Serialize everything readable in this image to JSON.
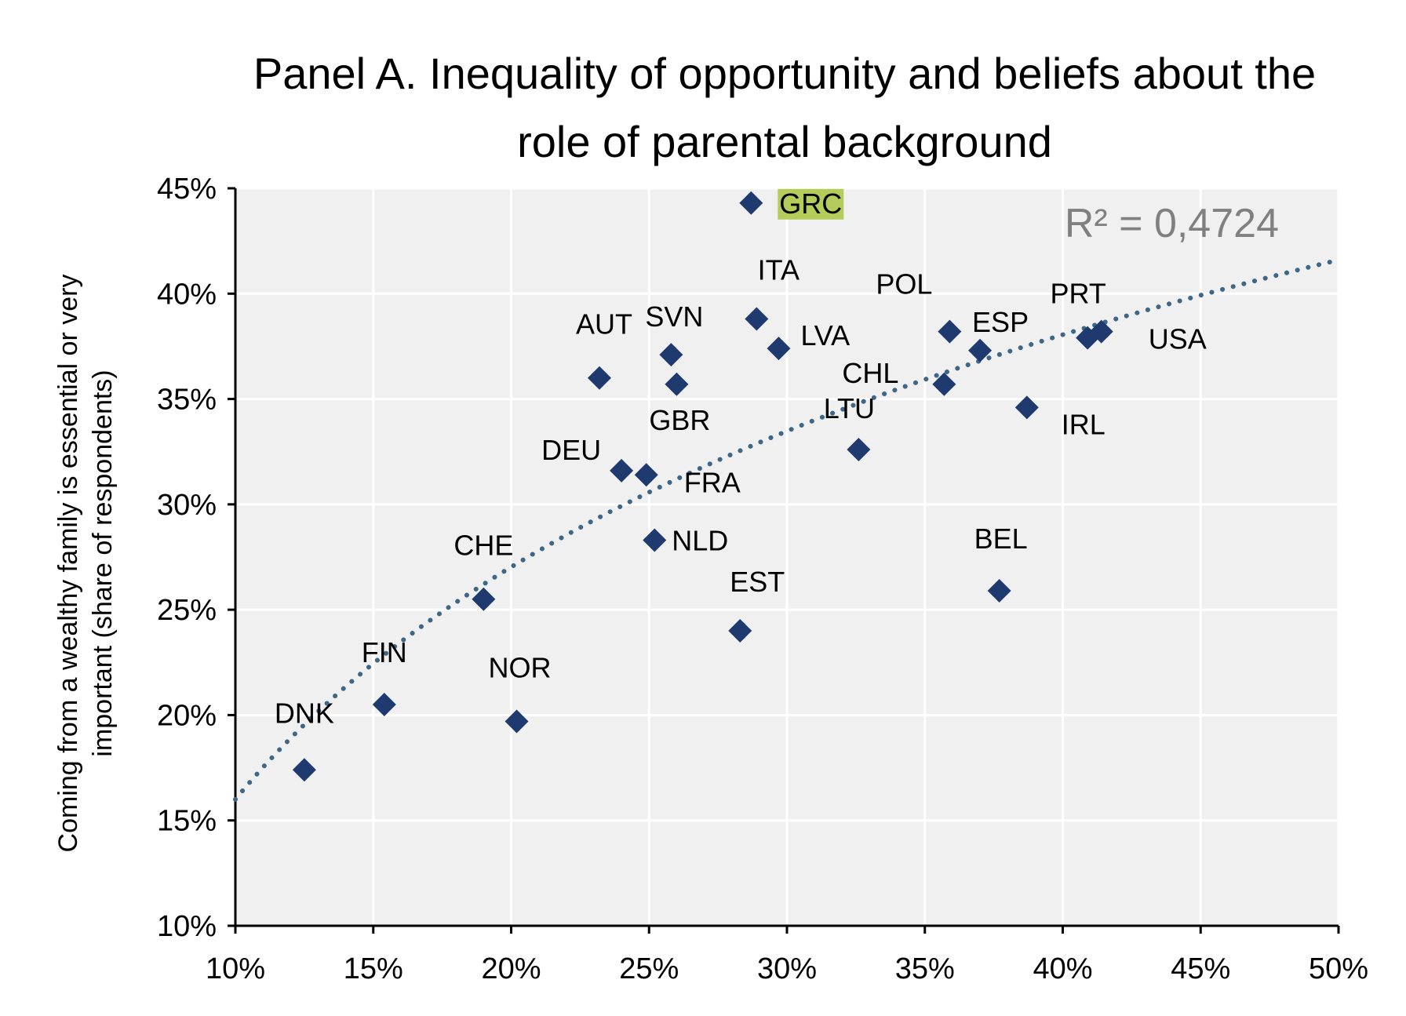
{
  "chart_data": {
    "type": "scatter",
    "title_lines": [
      "Panel A. Inequality of opportunity and beliefs about the",
      "role of parental background"
    ],
    "xlabel": "",
    "ylabel_lines": [
      "Coming from a wealthy family is essential or very",
      "important (share of respondents)"
    ],
    "xlim": [
      10,
      50
    ],
    "ylim": [
      10,
      45
    ],
    "x_ticks": [
      10,
      15,
      20,
      25,
      30,
      35,
      40,
      45,
      50
    ],
    "y_ticks": [
      10,
      15,
      20,
      25,
      30,
      35,
      40,
      45
    ],
    "x_tick_labels": [
      "10%",
      "15%",
      "20%",
      "25%",
      "30%",
      "35%",
      "40%",
      "45%",
      "50%"
    ],
    "y_tick_labels": [
      "10%",
      "15%",
      "20%",
      "25%",
      "30%",
      "35%",
      "40%",
      "45%"
    ],
    "grid": true,
    "r_squared_label": "R² = 0,4724",
    "trendline": {
      "type": "logarithmic",
      "x_from": 10,
      "x_to": 50,
      "y_at_10": 16.0,
      "y_at_50": 41.6
    },
    "highlight_label": "GRC",
    "points": [
      {
        "label": "DNK",
        "x": 12.5,
        "y": 17.4
      },
      {
        "label": "FIN",
        "x": 15.4,
        "y": 20.5
      },
      {
        "label": "NOR",
        "x": 20.2,
        "y": 19.7
      },
      {
        "label": "CHE",
        "x": 19.0,
        "y": 25.5
      },
      {
        "label": "AUT",
        "x": 23.2,
        "y": 36.0
      },
      {
        "label": "DEU",
        "x": 24.0,
        "y": 31.6
      },
      {
        "label": "FRA",
        "x": 24.9,
        "y": 31.4
      },
      {
        "label": "NLD",
        "x": 25.2,
        "y": 28.3
      },
      {
        "label": "SVN",
        "x": 25.8,
        "y": 37.1
      },
      {
        "label": "GBR",
        "x": 26.0,
        "y": 35.7
      },
      {
        "label": "EST",
        "x": 28.3,
        "y": 24.0
      },
      {
        "label": "GRC",
        "x": 28.7,
        "y": 44.3
      },
      {
        "label": "ITA",
        "x": 28.9,
        "y": 38.8
      },
      {
        "label": "LVA",
        "x": 29.7,
        "y": 37.4
      },
      {
        "label": "LTU",
        "x": 32.6,
        "y": 32.6
      },
      {
        "label": "CHL",
        "x": 35.7,
        "y": 35.7
      },
      {
        "label": "POL",
        "x": 35.9,
        "y": 38.2
      },
      {
        "label": "ESP",
        "x": 37.0,
        "y": 37.3
      },
      {
        "label": "BEL",
        "x": 37.7,
        "y": 25.9
      },
      {
        "label": "IRL",
        "x": 38.7,
        "y": 34.6
      },
      {
        "label": "PRT",
        "x": 40.9,
        "y": 37.9
      },
      {
        "label": "USA",
        "x": 41.4,
        "y": 38.2
      }
    ],
    "colors": {
      "marker": "#1f3a6f",
      "trendline": "#3d6687",
      "plot_background": "#f0f0f0",
      "grid": "#ffffff",
      "highlight": "#b4cc5a",
      "r2_text": "#808080"
    }
  }
}
